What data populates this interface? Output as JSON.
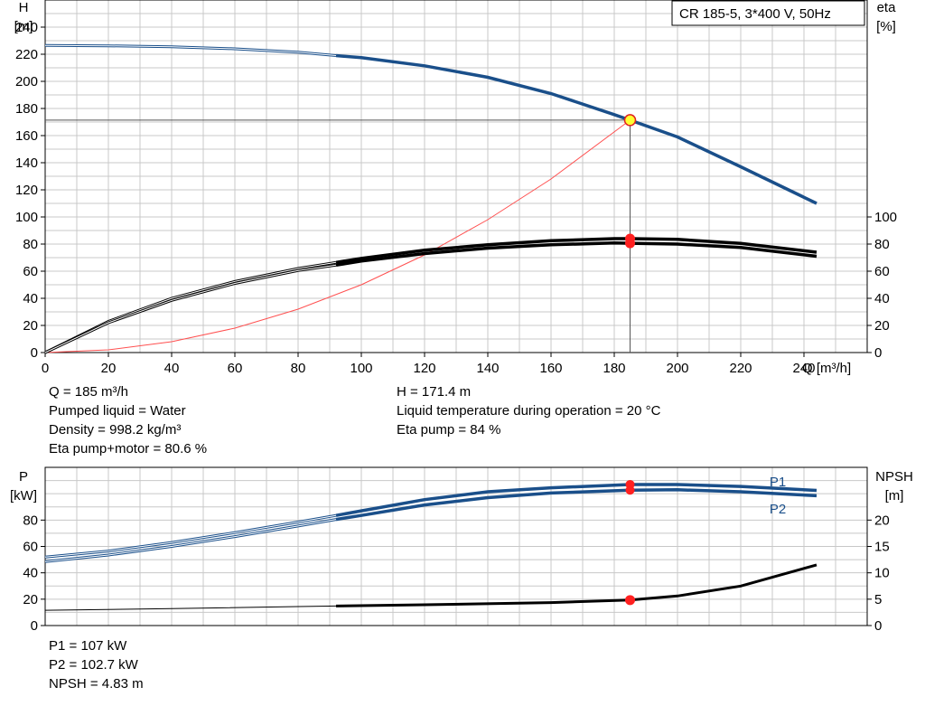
{
  "chart_data": [
    {
      "type": "line",
      "title": "CR 185-5, 3*400 V, 50Hz",
      "xlabel": "Q [m³/h]",
      "ylabel": [
        "H",
        "[m]"
      ],
      "ylabel_right": [
        "eta",
        "[%]"
      ],
      "xlim": [
        0,
        260
      ],
      "ylim": [
        0,
        260
      ],
      "y2lim": [
        0,
        260
      ],
      "xticks": [
        0,
        20,
        40,
        60,
        80,
        100,
        120,
        140,
        160,
        180,
        200,
        220,
        240
      ],
      "yticks": [
        0,
        20,
        40,
        60,
        80,
        100,
        120,
        140,
        160,
        180,
        200,
        220,
        240
      ],
      "y2ticks": [
        0,
        20,
        40,
        60,
        80,
        100
      ],
      "grid": true,
      "series": [
        {
          "name": "",
          "color": "#1a4f8a",
          "x": [
            0,
            20,
            40,
            60,
            80,
            92,
            100,
            120,
            140,
            160,
            180,
            185,
            200,
            220,
            244
          ],
          "y": [
            226.5,
            226.2,
            225.5,
            224,
            221.5,
            219,
            217.5,
            211.5,
            203,
            191,
            175.5,
            171.4,
            159,
            137,
            110
          ]
        },
        {
          "name": "",
          "color": "#000000",
          "x": [
            0,
            20,
            40,
            60,
            80,
            92,
            100,
            120,
            140,
            160,
            180,
            185,
            200,
            220,
            244
          ],
          "y": [
            0,
            23,
            40,
            52.5,
            62,
            66.5,
            69.5,
            75.5,
            79.5,
            82.5,
            84,
            84,
            83.5,
            80.5,
            74
          ]
        },
        {
          "name": "",
          "color": "#000000",
          "x": [
            0,
            20,
            40,
            60,
            80,
            92,
            100,
            120,
            140,
            160,
            180,
            185,
            200,
            220,
            244
          ],
          "y": [
            0,
            22,
            38.5,
            51,
            60.5,
            64.5,
            67.5,
            73,
            77,
            79.5,
            80.8,
            80.6,
            80,
            77.5,
            71
          ]
        },
        {
          "name": "",
          "color": "#ff5050",
          "x": [
            0,
            20,
            40,
            60,
            80,
            100,
            120,
            140,
            160,
            185
          ],
          "y": [
            0,
            2,
            8,
            18,
            32,
            50,
            72,
            98,
            128,
            171.4
          ]
        }
      ],
      "operating_point": {
        "x": 185,
        "y": 171.4
      },
      "efficiency_points": [
        84,
        80.6
      ]
    },
    {
      "type": "line",
      "ylabel": [
        "P",
        "[kW]"
      ],
      "ylabel_right": [
        "NPSH",
        "[m]"
      ],
      "xlim": [
        0,
        260
      ],
      "ylim": [
        0,
        120
      ],
      "y2lim": [
        0,
        30
      ],
      "yticks": [
        0,
        20,
        40,
        60,
        80
      ],
      "y2ticks": [
        0,
        5,
        10,
        15,
        20
      ],
      "grid": true,
      "series": [
        {
          "name": "P1",
          "color": "#1a4f8a",
          "x": [
            0,
            20,
            40,
            60,
            80,
            92,
            100,
            120,
            140,
            160,
            185,
            200,
            220,
            244
          ],
          "y": [
            52,
            56.5,
            63,
            70.5,
            78.5,
            83.5,
            87,
            95.5,
            101.5,
            104.5,
            107,
            107,
            105.5,
            102.5
          ]
        },
        {
          "name": "P2",
          "color": "#1a4f8a",
          "x": [
            0,
            20,
            40,
            60,
            80,
            92,
            100,
            120,
            140,
            160,
            185,
            200,
            220,
            244
          ],
          "y": [
            48.5,
            53.5,
            60,
            67.5,
            75.5,
            80.5,
            83.5,
            91.5,
            97,
            100.5,
            102.7,
            103,
            101.5,
            98.5
          ]
        },
        {
          "name": "",
          "axis": "right",
          "color": "#000000",
          "x": [
            0,
            40,
            80,
            92,
            120,
            160,
            185,
            200,
            220,
            244
          ],
          "y": [
            2.9,
            3.2,
            3.6,
            3.7,
            3.95,
            4.35,
            4.83,
            5.6,
            7.5,
            11.5
          ]
        }
      ],
      "operating_point": {
        "x": 185,
        "p1": 107,
        "p2": 102.7,
        "npsh": 4.83
      }
    }
  ],
  "info_top_left": [
    "Q = 185 m³/h",
    "Pumped liquid = Water",
    "Density = 998.2 kg/m³",
    "Eta pump+motor = 80.6 %"
  ],
  "info_top_right": [
    "H = 171.4 m",
    "Liquid temperature during operation = 20 °C",
    "Eta pump = 84 %"
  ],
  "info_bottom": [
    "P1 = 107 kW",
    "P2 = 102.7 kW",
    "NPSH = 4.83 m"
  ]
}
